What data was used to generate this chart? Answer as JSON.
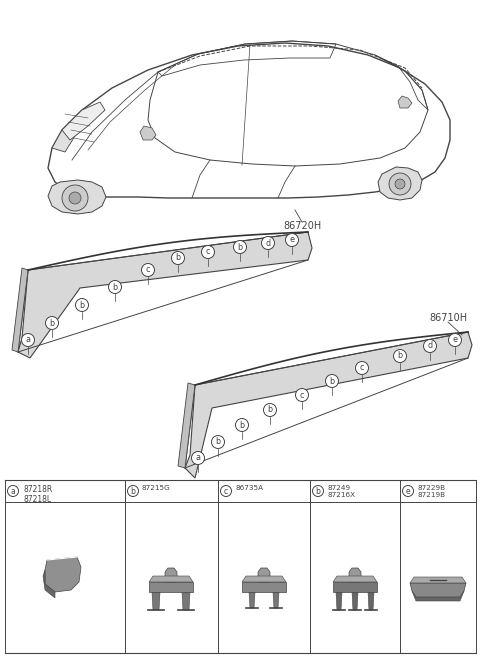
{
  "bg_color": "#ffffff",
  "fig_width": 4.8,
  "fig_height": 6.57,
  "dpi": 100,
  "label_86720H": "86720H",
  "label_86710H": "86710H",
  "strip1_labels": [
    [
      "a",
      28,
      340
    ],
    [
      "b",
      52,
      323
    ],
    [
      "b",
      82,
      305
    ],
    [
      "b",
      115,
      287
    ],
    [
      "c",
      148,
      270
    ],
    [
      "b",
      178,
      258
    ],
    [
      "c",
      208,
      252
    ],
    [
      "b",
      240,
      247
    ],
    [
      "d",
      268,
      243
    ],
    [
      "e",
      292,
      240
    ]
  ],
  "strip2_labels": [
    [
      "a",
      198,
      458
    ],
    [
      "b",
      218,
      442
    ],
    [
      "b",
      242,
      425
    ],
    [
      "b",
      270,
      410
    ],
    [
      "c",
      302,
      395
    ],
    [
      "b",
      332,
      381
    ],
    [
      "c",
      362,
      368
    ],
    [
      "b",
      400,
      356
    ],
    [
      "d",
      430,
      346
    ],
    [
      "e",
      455,
      340
    ]
  ],
  "table_parts": [
    {
      "letter": "a",
      "nums": [
        "87218R",
        "87218L"
      ],
      "style": "wedge"
    },
    {
      "letter": "b",
      "nums": [
        "87215G"
      ],
      "style": "clip1"
    },
    {
      "letter": "c",
      "nums": [
        "86735A"
      ],
      "style": "clip2"
    },
    {
      "letter": "b",
      "nums": [
        "87249",
        "87216X"
      ],
      "style": "clip3"
    },
    {
      "letter": "e",
      "nums": [
        "87229B",
        "87219B"
      ],
      "style": "cap"
    }
  ],
  "dgray": "#444444",
  "mgray": "#888888",
  "lgray": "#bbbbbb",
  "strip_fill": "#d8d8d8",
  "strip_edge": "#555555"
}
